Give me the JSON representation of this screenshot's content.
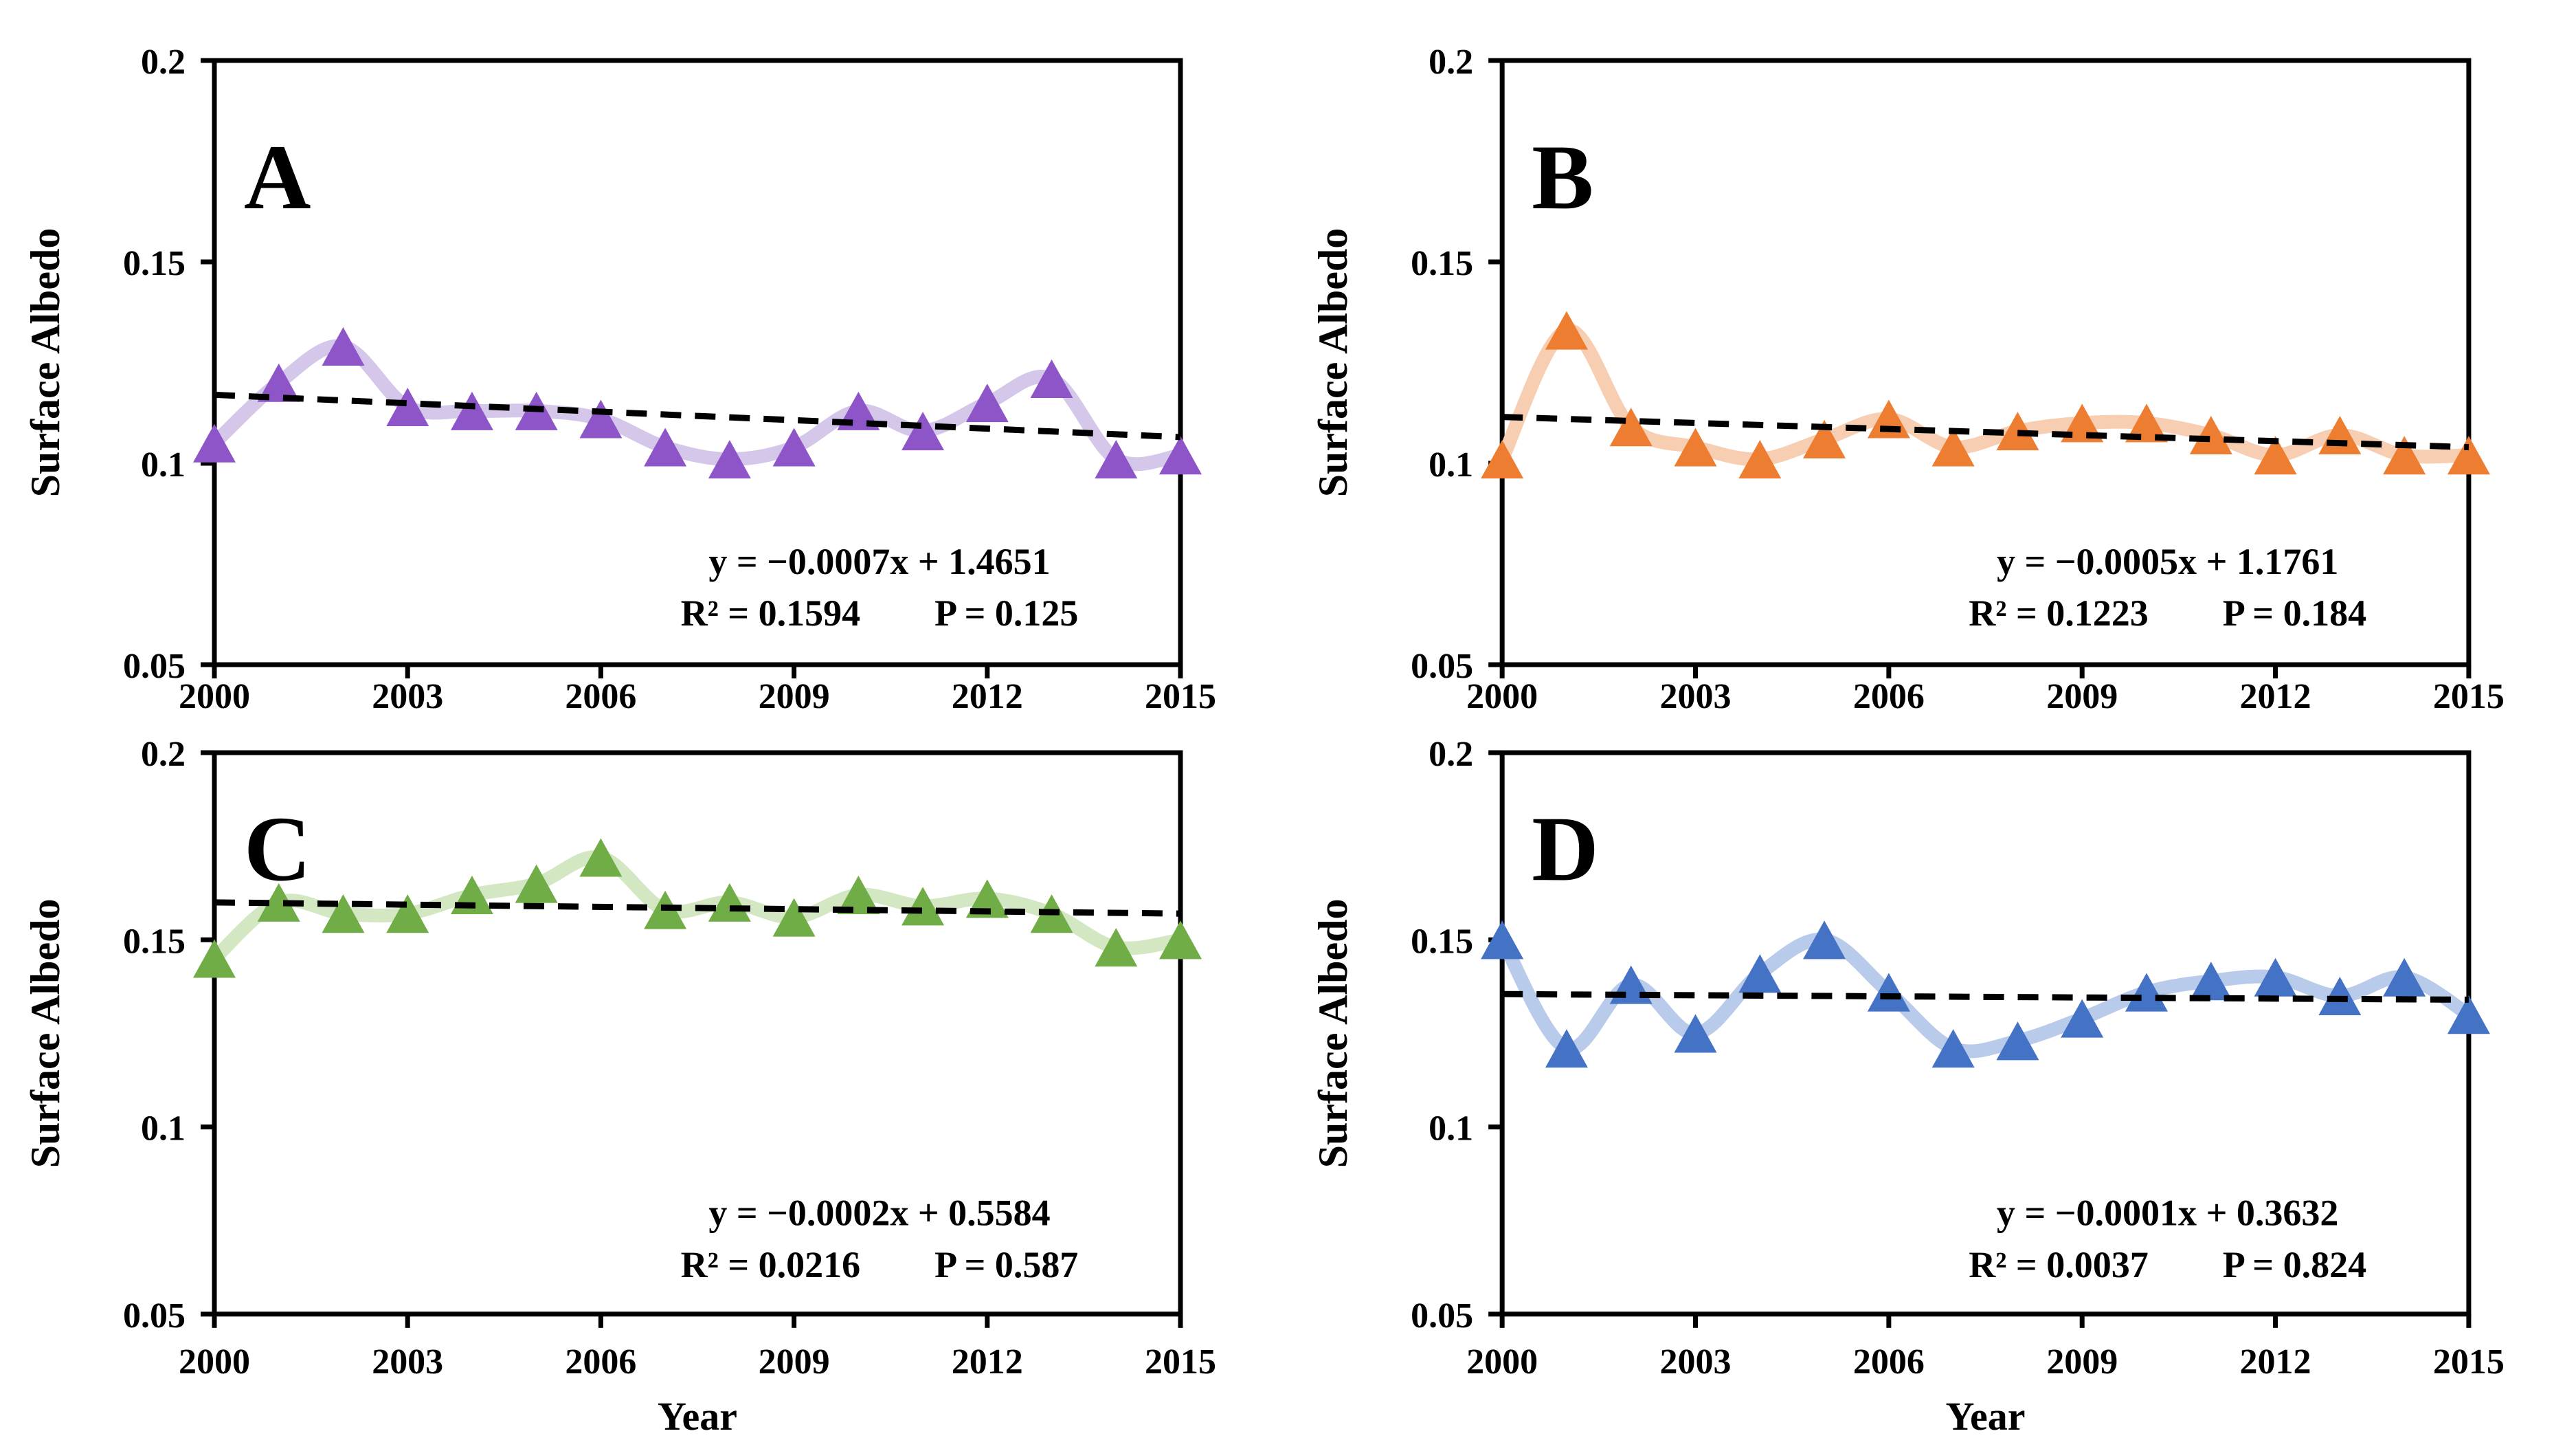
{
  "figure": {
    "background": "#ffffff",
    "axis_color": "#000000",
    "trend_color": "#000000",
    "y_axis_label": "Surface Albedo",
    "x_axis_label": "Year",
    "ylim": [
      0.05,
      0.2
    ],
    "xlim": [
      2000,
      2015
    ],
    "y_ticks": [
      {
        "value": 0.2,
        "label": "0.2"
      },
      {
        "value": 0.15,
        "label": "0.15"
      },
      {
        "value": 0.1,
        "label": "0.1"
      },
      {
        "value": 0.05,
        "label": "0.05"
      }
    ],
    "x_ticks": [
      {
        "value": 2000,
        "label": "2000"
      },
      {
        "value": 2003,
        "label": "2003"
      },
      {
        "value": 2006,
        "label": "2006"
      },
      {
        "value": 2009,
        "label": "2009"
      },
      {
        "value": 2012,
        "label": "2012"
      },
      {
        "value": 2015,
        "label": "2015"
      }
    ],
    "years": [
      2000,
      2001,
      2002,
      2003,
      2004,
      2005,
      2006,
      2007,
      2008,
      2009,
      2010,
      2011,
      2012,
      2013,
      2014,
      2015
    ]
  },
  "chart_data": [
    {
      "type": "line",
      "panel_label": "A",
      "row": "top",
      "show_x_title": false,
      "ylabel": "Surface Albedo",
      "xlabel": "",
      "marker": "triangle-up",
      "marker_color": "#8E55C8",
      "line_color": "#D4C7EA",
      "x": [
        2000,
        2001,
        2002,
        2003,
        2004,
        2005,
        2006,
        2007,
        2008,
        2009,
        2010,
        2011,
        2012,
        2013,
        2014,
        2015
      ],
      "values": [
        0.105,
        0.12,
        0.129,
        0.114,
        0.113,
        0.113,
        0.111,
        0.104,
        0.101,
        0.104,
        0.113,
        0.108,
        0.115,
        0.121,
        0.101,
        0.102
      ],
      "trend": {
        "equation": "y = −0.0007x + 1.4651",
        "r2_label": "R² = 0.1594",
        "p_label": "P = 0.125",
        "start_value": 0.117,
        "end_value": 0.1065
      }
    },
    {
      "type": "line",
      "panel_label": "B",
      "row": "top",
      "show_x_title": false,
      "ylabel": "Surface Albedo",
      "xlabel": "",
      "marker": "triangle-up",
      "marker_color": "#ED7D31",
      "line_color": "#F8CEB2",
      "x": [
        2000,
        2001,
        2002,
        2003,
        2004,
        2005,
        2006,
        2007,
        2008,
        2009,
        2010,
        2011,
        2012,
        2013,
        2014,
        2015
      ],
      "values": [
        0.101,
        0.133,
        0.109,
        0.104,
        0.101,
        0.106,
        0.111,
        0.104,
        0.108,
        0.11,
        0.11,
        0.107,
        0.102,
        0.107,
        0.102,
        0.102
      ],
      "trend": {
        "equation": "y = −0.0005x + 1.1761",
        "r2_label": "R² = 0.1223",
        "p_label": "P = 0.184",
        "start_value": 0.1115,
        "end_value": 0.104
      }
    },
    {
      "type": "line",
      "panel_label": "C",
      "row": "bottom",
      "show_x_title": true,
      "ylabel": "Surface Albedo",
      "xlabel": "Year",
      "marker": "triangle-up",
      "marker_color": "#70AD47",
      "line_color": "#D3E7C3",
      "x": [
        2000,
        2001,
        2002,
        2003,
        2004,
        2005,
        2006,
        2007,
        2008,
        2009,
        2010,
        2011,
        2012,
        2013,
        2014,
        2015
      ],
      "values": [
        0.145,
        0.16,
        0.157,
        0.157,
        0.162,
        0.165,
        0.172,
        0.158,
        0.16,
        0.156,
        0.162,
        0.159,
        0.161,
        0.157,
        0.148,
        0.15
      ],
      "trend": {
        "equation": "y = −0.0002x + 0.5584",
        "r2_label": "R² = 0.0216",
        "p_label": "P = 0.587",
        "start_value": 0.16,
        "end_value": 0.157
      }
    },
    {
      "type": "line",
      "panel_label": "D",
      "row": "bottom",
      "show_x_title": true,
      "ylabel": "Surface Albedo",
      "xlabel": "Year",
      "marker": "triangle-up",
      "marker_color": "#4472C4",
      "line_color": "#B9CBEA",
      "x": [
        2000,
        2001,
        2002,
        2003,
        2004,
        2005,
        2006,
        2007,
        2008,
        2009,
        2010,
        2011,
        2012,
        2013,
        2014,
        2015
      ],
      "values": [
        0.15,
        0.121,
        0.138,
        0.125,
        0.141,
        0.15,
        0.136,
        0.121,
        0.123,
        0.129,
        0.136,
        0.139,
        0.14,
        0.135,
        0.14,
        0.13
      ],
      "trend": {
        "equation": "y = −0.0001x + 0.3632",
        "r2_label": "R² = 0.0037",
        "p_label": "P = 0.824",
        "start_value": 0.1355,
        "end_value": 0.134
      }
    }
  ]
}
